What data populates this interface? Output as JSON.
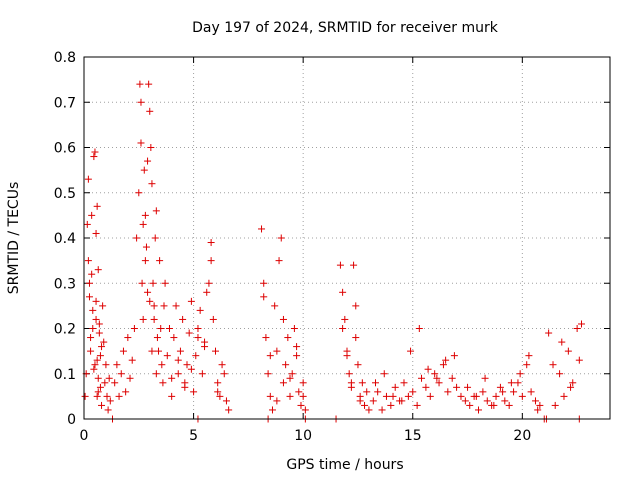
{
  "chart_data": {
    "type": "scatter",
    "title": "Day 197 of 2024, SRMTID for receiver murk",
    "xlabel": "GPS time / hours",
    "ylabel": "SRMTID / TECUs",
    "xlim": [
      0,
      24
    ],
    "ylim": [
      0,
      0.8
    ],
    "xticks": [
      0,
      5,
      10,
      15,
      20
    ],
    "yticks": [
      0,
      0.1,
      0.2,
      0.3,
      0.4,
      0.5,
      0.6,
      0.7,
      0.8
    ],
    "xtick_labels": [
      "0",
      "5",
      "10",
      "15",
      "20"
    ],
    "ytick_labels": [
      "0",
      "0.1",
      "0.2",
      "0.3",
      "0.4",
      "0.5",
      "0.6",
      "0.7",
      "0.8"
    ],
    "grid": true,
    "marker": "+",
    "color": "#dd0000",
    "series": [
      {
        "name": "SRMTID",
        "x": [
          0.05,
          0.1,
          0.15,
          0.2,
          0.25,
          0.3,
          0.35,
          0.4,
          0.45,
          0.5,
          0.55,
          0.6,
          0.65,
          0.7,
          0.75,
          0.8,
          0.85,
          0.9,
          0.95,
          1.0,
          1.05,
          1.1,
          1.15,
          1.2,
          0.2,
          0.25,
          0.3,
          0.35,
          0.4,
          0.45,
          0.5,
          0.55,
          0.6,
          0.65,
          0.7,
          0.75,
          0.8,
          0.55,
          0.6,
          0.65,
          1.4,
          1.5,
          1.6,
          1.7,
          1.8,
          1.9,
          2.0,
          2.1,
          2.2,
          2.3,
          2.4,
          2.5,
          2.55,
          2.6,
          2.65,
          2.7,
          2.75,
          2.8,
          2.85,
          2.9,
          2.95,
          3.0,
          3.05,
          3.1,
          3.15,
          3.2,
          3.25,
          3.3,
          3.35,
          3.4,
          3.45,
          3.5,
          3.55,
          3.6,
          3.65,
          3.7,
          2.6,
          2.7,
          2.8,
          2.9,
          3.0,
          3.1,
          3.2,
          3.3,
          3.8,
          3.9,
          4.0,
          4.1,
          4.2,
          4.3,
          4.4,
          4.5,
          4.6,
          4.7,
          4.8,
          4.9,
          5.0,
          5.1,
          5.2,
          5.3,
          5.4,
          5.5,
          5.6,
          5.7,
          5.8,
          5.9,
          6.0,
          6.1,
          6.2,
          6.3,
          6.4,
          6.5,
          6.6,
          4.0,
          4.3,
          4.6,
          4.9,
          5.2,
          5.5,
          5.8,
          6.1,
          8.1,
          8.2,
          8.3,
          8.4,
          8.5,
          8.6,
          8.7,
          8.8,
          8.9,
          9.0,
          9.1,
          9.2,
          9.3,
          9.4,
          9.5,
          9.6,
          9.7,
          9.8,
          9.9,
          10.0,
          10.1,
          8.2,
          8.5,
          8.8,
          9.1,
          9.4,
          9.7,
          10.0,
          11.7,
          11.8,
          11.9,
          12.0,
          12.1,
          12.2,
          12.3,
          12.4,
          12.5,
          12.6,
          12.7,
          12.8,
          12.9,
          13.0,
          11.8,
          12.0,
          12.2,
          12.4,
          12.6,
          13.2,
          13.4,
          13.6,
          13.8,
          14.0,
          14.2,
          14.4,
          14.6,
          14.8,
          15.0,
          15.2,
          15.4,
          15.6,
          15.8,
          16.0,
          16.2,
          16.4,
          16.6,
          16.8,
          17.0,
          17.2,
          13.3,
          13.7,
          14.1,
          14.5,
          14.9,
          15.3,
          15.7,
          16.1,
          16.5,
          16.9,
          17.4,
          17.6,
          17.8,
          18.0,
          18.2,
          18.4,
          18.6,
          18.8,
          19.0,
          19.2,
          19.4,
          19.6,
          19.8,
          20.0,
          20.2,
          20.4,
          20.6,
          20.8,
          17.5,
          17.9,
          18.3,
          18.7,
          19.1,
          19.5,
          19.9,
          20.3,
          20.7,
          21.2,
          21.5,
          21.7,
          21.9,
          22.1,
          22.3,
          22.5,
          22.7,
          21.4,
          21.8,
          22.2,
          22.6,
          1.3,
          5.2,
          8.4,
          10.1,
          11.5,
          21.0,
          21.1,
          22.6
        ],
        "y": [
          0.05,
          0.1,
          0.43,
          0.53,
          0.3,
          0.18,
          0.45,
          0.2,
          0.58,
          0.12,
          0.26,
          0.05,
          0.09,
          0.21,
          0.14,
          0.03,
          0.25,
          0.17,
          0.08,
          0.12,
          0.05,
          0.02,
          0.09,
          0.04,
          0.35,
          0.27,
          0.15,
          0.32,
          0.24,
          0.11,
          0.59,
          0.41,
          0.47,
          0.33,
          0.19,
          0.07,
          0.16,
          0.22,
          0.13,
          0.06,
          0.08,
          0.12,
          0.05,
          0.1,
          0.15,
          0.06,
          0.18,
          0.09,
          0.13,
          0.2,
          0.4,
          0.5,
          0.74,
          0.61,
          0.3,
          0.22,
          0.55,
          0.45,
          0.38,
          0.28,
          0.74,
          0.68,
          0.6,
          0.52,
          0.3,
          0.25,
          0.4,
          0.46,
          0.18,
          0.15,
          0.35,
          0.2,
          0.12,
          0.08,
          0.25,
          0.3,
          0.7,
          0.43,
          0.35,
          0.57,
          0.26,
          0.15,
          0.22,
          0.1,
          0.14,
          0.2,
          0.05,
          0.18,
          0.25,
          0.1,
          0.15,
          0.22,
          0.08,
          0.12,
          0.19,
          0.26,
          0.06,
          0.14,
          0.2,
          0.24,
          0.1,
          0.17,
          0.28,
          0.3,
          0.35,
          0.22,
          0.15,
          0.08,
          0.05,
          0.12,
          0.1,
          0.04,
          0.02,
          0.09,
          0.13,
          0.07,
          0.11,
          0.18,
          0.16,
          0.39,
          0.06,
          0.42,
          0.3,
          0.18,
          0.1,
          0.05,
          0.02,
          0.25,
          0.15,
          0.35,
          0.4,
          0.08,
          0.12,
          0.18,
          0.05,
          0.1,
          0.2,
          0.14,
          0.06,
          0.03,
          0.08,
          0.02,
          0.27,
          0.14,
          0.04,
          0.22,
          0.09,
          0.16,
          0.05,
          0.34,
          0.28,
          0.22,
          0.15,
          0.1,
          0.08,
          0.34,
          0.25,
          0.12,
          0.05,
          0.08,
          0.03,
          0.06,
          0.02,
          0.2,
          0.14,
          0.07,
          0.18,
          0.04,
          0.04,
          0.06,
          0.02,
          0.05,
          0.03,
          0.07,
          0.04,
          0.08,
          0.05,
          0.06,
          0.03,
          0.09,
          0.07,
          0.05,
          0.1,
          0.08,
          0.12,
          0.06,
          0.09,
          0.07,
          0.05,
          0.08,
          0.1,
          0.05,
          0.04,
          0.15,
          0.2,
          0.11,
          0.09,
          0.13,
          0.14,
          0.04,
          0.03,
          0.05,
          0.02,
          0.06,
          0.04,
          0.03,
          0.05,
          0.07,
          0.04,
          0.03,
          0.06,
          0.08,
          0.05,
          0.12,
          0.06,
          0.04,
          0.03,
          0.07,
          0.05,
          0.09,
          0.03,
          0.06,
          0.08,
          0.1,
          0.14,
          0.02,
          0.19,
          0.03,
          0.1,
          0.05,
          0.15,
          0.08,
          0.2,
          0.21,
          0.12,
          0.17,
          0.07,
          0.13,
          0.0,
          0.0,
          0.0,
          0.0,
          0.0,
          0.0,
          0.0,
          0.0
        ]
      }
    ]
  }
}
